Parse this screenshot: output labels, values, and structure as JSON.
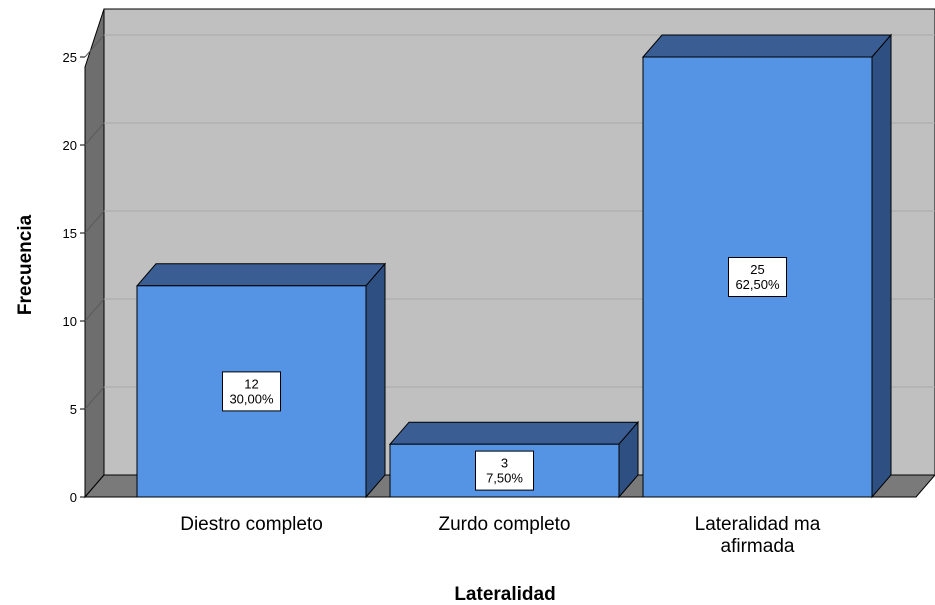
{
  "chart_data": {
    "type": "bar",
    "style": "3d",
    "categories": [
      "Diestro completo",
      "Zurdo completo",
      "Lateralidad ma afirmada"
    ],
    "category_lines": [
      [
        "Diestro completo"
      ],
      [
        "Zurdo completo"
      ],
      [
        "Lateralidad ma",
        "afirmada"
      ]
    ],
    "values": [
      12,
      3,
      25
    ],
    "percent_labels": [
      "30,00%",
      "7,50%",
      "62,50%"
    ],
    "xlabel": "Lateralidad",
    "ylabel": "Frecuencia",
    "ylim": [
      0,
      25
    ],
    "yticks": [
      0,
      5,
      10,
      15,
      20,
      25
    ],
    "grid": true,
    "colors": {
      "bar_front": "#5593E5",
      "bar_top": "#3A5E94",
      "bar_side": "#2E4F82",
      "plot_back": "#C0C0C0",
      "floor": "#7A7A7A",
      "left_wall": "#6E6E6E"
    }
  }
}
